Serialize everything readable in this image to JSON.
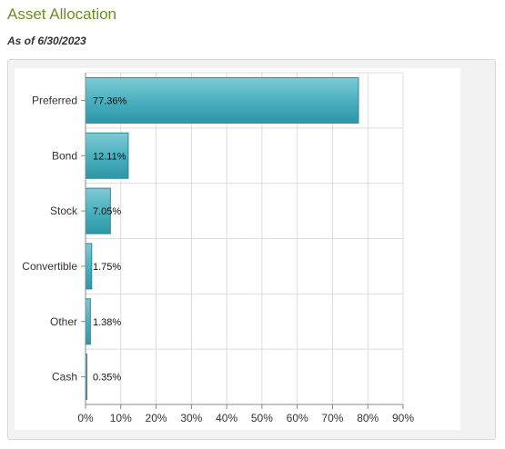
{
  "header": {
    "title": "Asset Allocation",
    "as_of": "As of 6/30/2023"
  },
  "chart_data": {
    "type": "bar",
    "orientation": "horizontal",
    "categories": [
      "Preferred",
      "Bond",
      "Stock",
      "Convertible",
      "Other",
      "Cash"
    ],
    "values": [
      77.36,
      12.11,
      7.05,
      1.75,
      1.38,
      0.35
    ],
    "value_labels": [
      "77.36%",
      "12.11%",
      "7.05%",
      "1.75%",
      "1.38%",
      "0.35%"
    ],
    "xticks": [
      "0%",
      "10%",
      "20%",
      "30%",
      "40%",
      "50%",
      "60%",
      "70%",
      "80%",
      "90%"
    ],
    "xlim": [
      0,
      90
    ],
    "grid": true,
    "bar_color": "#3aa3b3"
  }
}
